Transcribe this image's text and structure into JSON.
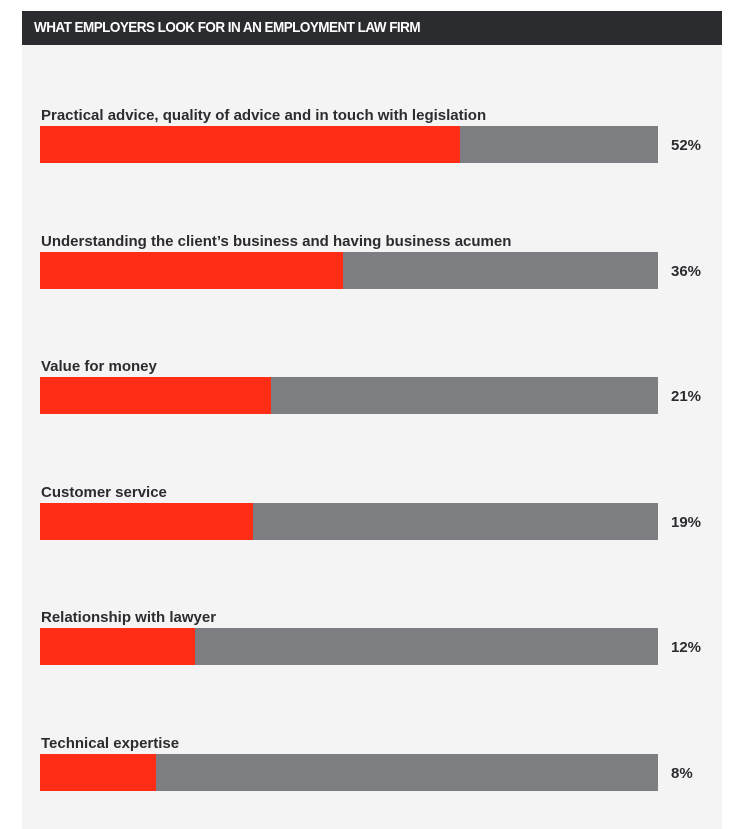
{
  "chart_data": {
    "type": "bar",
    "title": "WHAT EMPLOYERS LOOK FOR IN AN EMPLOYMENT LAW FIRM",
    "categories": [
      "Practical advice, quality of advice and in touch with legislation",
      "Understanding the client’s business and having business acumen",
      "Value for money",
      "Customer service",
      "Relationship with lawyer",
      "Technical expertise"
    ],
    "values": [
      52,
      36,
      21,
      19,
      12,
      8
    ],
    "value_labels": [
      "52%",
      "36%",
      "21%",
      "19%",
      "12%",
      "8%"
    ],
    "fill_fractions": [
      0.68,
      0.49,
      0.374,
      0.345,
      0.25,
      0.188
    ],
    "orientation": "horizontal",
    "colors": {
      "fill": "#ff2d16",
      "track": "#7d7e82",
      "header": "#2b2c30"
    }
  }
}
